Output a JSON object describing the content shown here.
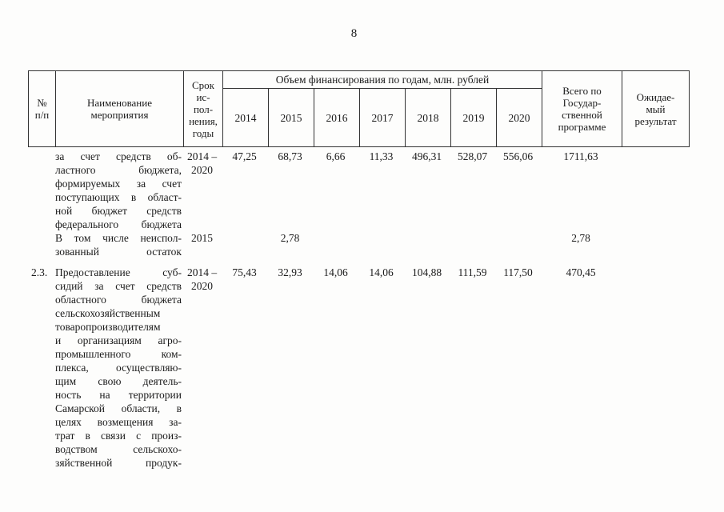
{
  "page": {
    "number": "8"
  },
  "table": {
    "headers": {
      "num": "№\nп/п",
      "name": "Наименование\nмероприятия",
      "term": "Срок\nис-\nпол-\nнения,\nгоды",
      "finance_group": "Объем финансирования по годам, млн. рублей",
      "years": [
        "2014",
        "2015",
        "2016",
        "2017",
        "2018",
        "2019",
        "2020"
      ],
      "total": "Всего по\nГосудар-\nственной\nпрограмме",
      "result": "Ожидае-\nмый\nрезультат"
    },
    "rows": [
      {
        "num": "",
        "name": "за счет средств об-\nластного бюджета,\nформируемых за счет\nпоступающих в област-\nной бюджет средств\nфедерального бюджета",
        "term": "2014 –\n2020",
        "values": [
          "47,25",
          "68,73",
          "6,66",
          "11,33",
          "496,31",
          "528,07",
          "556,06"
        ],
        "total": "1711,63",
        "result": ""
      },
      {
        "num": "",
        "name": "В том числе неиспол-\nзованный остаток",
        "term": "2015",
        "values": [
          "",
          "2,78",
          "",
          "",
          "",
          "",
          ""
        ],
        "total": "2,78",
        "result": ""
      },
      {
        "num": "2.3.",
        "name": "Предоставление суб-\nсидий за счет средств\nобластного бюджета\nсельскохозяйственным\nтоваропроизводителям\nи организациям агро-\nпромышленного ком-\nплекса, осуществляю-\nщим свою деятель-\nность на территории\nСамарской области, в\nцелях возмещения за-\nтрат в связи с произ-\nводством сельскохо-\nзяйственной продук-",
        "term": "2014 –\n2020",
        "values": [
          "75,43",
          "32,93",
          "14,06",
          "14,06",
          "104,88",
          "111,59",
          "117,50"
        ],
        "total": "470,45",
        "result": ""
      }
    ]
  }
}
